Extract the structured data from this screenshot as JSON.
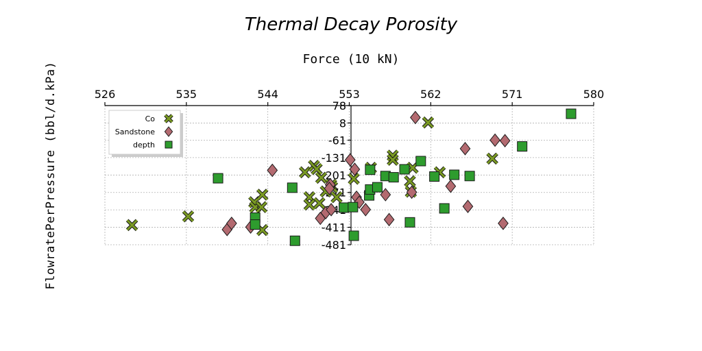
{
  "chart_data": {
    "type": "scatter",
    "title": "Thermal Decay Porosity",
    "xlabel": "Force (10 kN)",
    "ylabel": "FlowratePerPressure (bbl/d.kPa)",
    "xlim": [
      526,
      580
    ],
    "ylim": [
      -481,
      78
    ],
    "xticks": [
      526,
      535,
      544,
      553,
      562,
      571,
      580
    ],
    "yticks": [
      78,
      8,
      -61,
      -131,
      -201,
      -271,
      -341,
      -411,
      -481
    ],
    "xtick_labels": [
      "526",
      "535",
      "544",
      "553",
      "562",
      "571",
      "580"
    ],
    "ytick_labels": [
      "78",
      "8",
      "-61",
      "-131",
      "-201",
      "-271",
      "-341",
      "-411",
      "-481"
    ],
    "grid": true,
    "legend_position": "top-left",
    "series": [
      {
        "name": "Co",
        "marker": "x",
        "color": "#7a9a23",
        "points": [
          [
            529,
            -402
          ],
          [
            535.2,
            -367
          ],
          [
            542.5,
            -310
          ],
          [
            542.6,
            -330
          ],
          [
            543.3,
            -330
          ],
          [
            543.4,
            -280
          ],
          [
            543.4,
            -422
          ],
          [
            548.1,
            -190
          ],
          [
            548.6,
            -290
          ],
          [
            548.6,
            -320
          ],
          [
            549.1,
            -164
          ],
          [
            549.4,
            -177
          ],
          [
            549.7,
            -314
          ],
          [
            549.9,
            -212
          ],
          [
            550.4,
            -267
          ],
          [
            551,
            -240
          ],
          [
            551.1,
            -250
          ],
          [
            551.6,
            -290
          ],
          [
            553.5,
            -216
          ],
          [
            555.4,
            -172
          ],
          [
            557.8,
            -123
          ],
          [
            557.8,
            -140
          ],
          [
            559.7,
            -226
          ],
          [
            559.8,
            -268
          ],
          [
            560,
            -172
          ],
          [
            561.7,
            10
          ],
          [
            563,
            -190
          ],
          [
            568.8,
            -135
          ]
        ]
      },
      {
        "name": "Sandstone",
        "marker": "diamond",
        "color": "#b36a70",
        "points": [
          [
            539.5,
            -420
          ],
          [
            540,
            -395
          ],
          [
            542.1,
            -410
          ],
          [
            544.5,
            -182
          ],
          [
            549.8,
            -375
          ],
          [
            550.4,
            -352
          ],
          [
            551,
            -340
          ],
          [
            550.9,
            -240
          ],
          [
            550.8,
            -255
          ],
          [
            553.1,
            -140
          ],
          [
            553.6,
            -178
          ],
          [
            553.8,
            -290
          ],
          [
            554.1,
            -310
          ],
          [
            554.8,
            -340
          ],
          [
            557,
            -280
          ],
          [
            557.4,
            -380
          ],
          [
            559.9,
            -270
          ],
          [
            560.3,
            30
          ],
          [
            564.2,
            -246
          ],
          [
            565.8,
            -95
          ],
          [
            566.1,
            -327
          ],
          [
            569.1,
            -61
          ],
          [
            570,
            -395
          ],
          [
            570.2,
            -63
          ]
        ]
      },
      {
        "name": "depth",
        "marker": "square",
        "color": "#2e9c2e",
        "points": [
          [
            538.5,
            -214
          ],
          [
            542.6,
            -372
          ],
          [
            542.6,
            -400
          ],
          [
            546.7,
            -252
          ],
          [
            547,
            -465
          ],
          [
            552.4,
            -332
          ],
          [
            553.4,
            -330
          ],
          [
            553.5,
            -445
          ],
          [
            555.2,
            -283
          ],
          [
            555.3,
            -259
          ],
          [
            555.3,
            -180
          ],
          [
            556.1,
            -250
          ],
          [
            557,
            -205
          ],
          [
            557.9,
            -210
          ],
          [
            559.1,
            -178
          ],
          [
            560.9,
            -145
          ],
          [
            562.4,
            -207
          ],
          [
            563.5,
            -335
          ],
          [
            564.6,
            -200
          ],
          [
            566.3,
            -205
          ],
          [
            572.1,
            -86
          ],
          [
            577.5,
            45
          ],
          [
            559.7,
            -391
          ]
        ]
      }
    ]
  }
}
